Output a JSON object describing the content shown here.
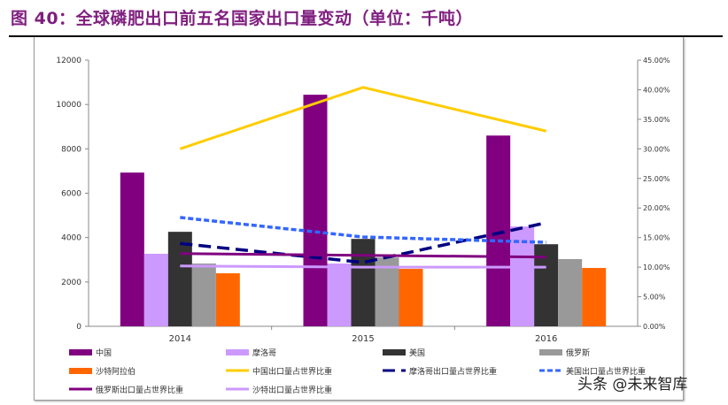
{
  "title": "图 40：全球磷肥出口前五名国家出口量变动（单位：千吨）",
  "watermark": "头条 @未来智库",
  "chart_data": {
    "type": "bar+line",
    "categories": [
      "2014",
      "2015",
      "2016"
    ],
    "y_left": {
      "range": [
        0,
        12000
      ],
      "ticks": [
        "0",
        "2000",
        "4000",
        "6000",
        "8000",
        "10000",
        "12000"
      ]
    },
    "y_right": {
      "range": [
        0,
        45
      ],
      "ticks": [
        "0.00%",
        "5.00%",
        "10.00%",
        "15.00%",
        "20.00%",
        "25.00%",
        "30.00%",
        "35.00%",
        "40.00%",
        "45.00%"
      ]
    },
    "bar_series": [
      {
        "name": "中国",
        "color": "#800080",
        "values": [
          6930,
          10440,
          8600
        ]
      },
      {
        "name": "摩洛哥",
        "color": "#cc99ff",
        "values": [
          3270,
          2830,
          4500
        ]
      },
      {
        "name": "美国",
        "color": "#333333",
        "values": [
          4260,
          3940,
          3700
        ]
      },
      {
        "name": "俄罗斯",
        "color": "#999999",
        "values": [
          2830,
          3100,
          3030
        ]
      },
      {
        "name": "沙特阿拉伯",
        "color": "#ff6600",
        "values": [
          2390,
          2590,
          2630
        ]
      }
    ],
    "line_series": [
      {
        "name": "中国出口量占世界比重",
        "color": "#ffcc00",
        "dash": "solid",
        "values": [
          30.0,
          40.4,
          33.0
        ]
      },
      {
        "name": "摩洛哥出口量占世界比重",
        "color": "#000080",
        "dash": "longdash",
        "values": [
          14.0,
          10.8,
          17.5
        ]
      },
      {
        "name": "美国出口量占世界比重",
        "color": "#3366ff",
        "dash": "shortdash",
        "values": [
          18.4,
          15.1,
          14.2
        ]
      },
      {
        "name": "俄罗斯出口量占世界比重",
        "color": "#800080",
        "dash": "solid",
        "values": [
          12.3,
          12.0,
          11.7
        ]
      },
      {
        "name": "沙特出口量占世界比重",
        "color": "#cc99ff",
        "dash": "solid",
        "values": [
          10.2,
          10.0,
          10.0
        ]
      }
    ],
    "legend": "bottom",
    "grid": false
  }
}
